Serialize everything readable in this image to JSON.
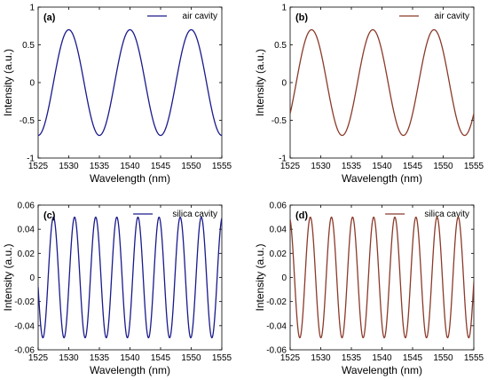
{
  "chart_data": [
    {
      "type": "line",
      "panel_label": "(a)",
      "xlabel": "Wavelength (nm)",
      "ylabel": "Intensity (a.u.)",
      "xlim": [
        1525,
        1555
      ],
      "ylim": [
        -1,
        1
      ],
      "xticks": [
        1525,
        1530,
        1535,
        1540,
        1545,
        1550,
        1555
      ],
      "yticks": [
        -1,
        -0.5,
        0,
        0.5,
        1
      ],
      "ytick_labels": [
        "-1",
        "-0.5",
        "0",
        "0.5",
        "1"
      ],
      "legend_placement": "top-right",
      "series": [
        {
          "name": "air cavity",
          "color": "#1a1a8c",
          "amplitude": 0.7,
          "period_nm": 10,
          "peak_wavelength_nm": 1530
        }
      ]
    },
    {
      "type": "line",
      "panel_label": "(b)",
      "xlabel": "Wavelength (nm)",
      "ylabel": "Intensity (a.u.)",
      "xlim": [
        1525,
        1555
      ],
      "ylim": [
        -1,
        1
      ],
      "xticks": [
        1525,
        1530,
        1535,
        1540,
        1545,
        1550,
        1555
      ],
      "yticks": [
        -1,
        -0.5,
        0,
        0.5,
        1
      ],
      "ytick_labels": [
        "-1",
        "-0.5",
        "0",
        "0.5",
        "1"
      ],
      "legend_placement": "top-right",
      "series": [
        {
          "name": "air cavity",
          "color": "#8b3a2a",
          "amplitude": 0.7,
          "period_nm": 10,
          "peak_wavelength_nm": 1528.5
        }
      ]
    },
    {
      "type": "line",
      "panel_label": "(c)",
      "xlabel": "Wavelength (nm)",
      "ylabel": "Intensity (a.u.)",
      "xlim": [
        1525,
        1555
      ],
      "ylim": [
        -0.06,
        0.06
      ],
      "xticks": [
        1525,
        1530,
        1535,
        1540,
        1545,
        1550,
        1555
      ],
      "yticks": [
        -0.06,
        -0.04,
        -0.02,
        0,
        0.02,
        0.04,
        0.06
      ],
      "ytick_labels": [
        "-0.06",
        "-0.04",
        "-0.02",
        "0",
        "0.02",
        "0.04",
        "0.06"
      ],
      "legend_placement": "top-right",
      "series": [
        {
          "name": "silica cavity",
          "color": "#1a1a8c",
          "amplitude": 0.05,
          "period_nm": 3.45,
          "peak_wavelength_nm": 1527.5
        }
      ]
    },
    {
      "type": "line",
      "panel_label": "(d)",
      "xlabel": "Wavelength (nm)",
      "ylabel": "Intensity (a.u.)",
      "xlim": [
        1525,
        1555
      ],
      "ylim": [
        -0.06,
        0.06
      ],
      "xticks": [
        1525,
        1530,
        1535,
        1540,
        1545,
        1550,
        1555
      ],
      "yticks": [
        -0.06,
        -0.04,
        -0.02,
        0,
        0.02,
        0.04,
        0.06
      ],
      "ytick_labels": [
        "-0.06",
        "-0.04",
        "-0.02",
        "0",
        "0.02",
        "0.04",
        "0.06"
      ],
      "legend_placement": "top-right",
      "series": [
        {
          "name": "silica cavity",
          "color": "#8b3a2a",
          "amplitude": 0.05,
          "period_nm": 3.45,
          "peak_wavelength_nm": 1528.3
        }
      ]
    }
  ]
}
